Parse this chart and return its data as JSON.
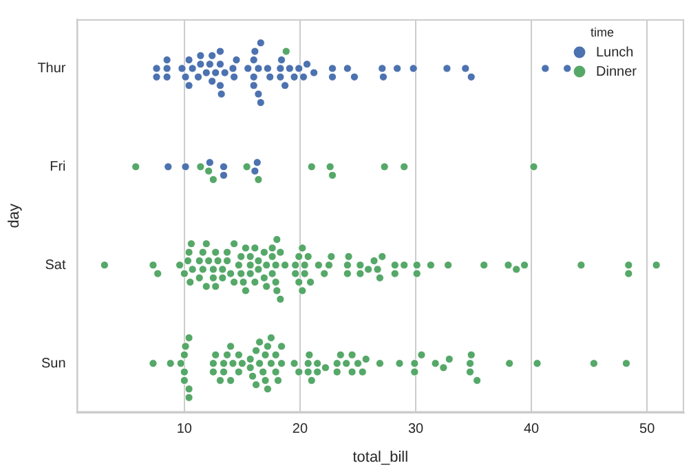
{
  "chart_data": {
    "type": "scatter",
    "orientation": "horizontal",
    "xlabel": "total_bill",
    "ylabel": "day",
    "legend_title": "time",
    "legend": "top right",
    "grid": "x",
    "marker": "circle",
    "categories": [
      "Thur",
      "Fri",
      "Sat",
      "Sun"
    ],
    "xlim": [
      0.7,
      53.2
    ],
    "xticks": [
      10,
      20,
      30,
      40,
      50
    ],
    "series": [
      {
        "name": "Lunch",
        "color": "#4c72b0",
        "x": [
          "Thur",
          "Thur",
          "Thur",
          "Thur",
          "Thur",
          "Thur",
          "Thur",
          "Thur",
          "Thur",
          "Thur",
          "Thur",
          "Thur",
          "Thur",
          "Thur",
          "Thur",
          "Thur",
          "Thur",
          "Thur",
          "Thur",
          "Thur",
          "Thur",
          "Thur",
          "Thur",
          "Thur",
          "Thur",
          "Thur",
          "Thur",
          "Thur",
          "Thur",
          "Thur",
          "Thur",
          "Thur",
          "Thur",
          "Thur",
          "Thur",
          "Thur",
          "Thur",
          "Thur",
          "Thur",
          "Thur",
          "Thur",
          "Thur",
          "Thur",
          "Thur",
          "Thur",
          "Thur",
          "Thur",
          "Thur",
          "Thur",
          "Thur",
          "Thur",
          "Thur",
          "Thur",
          "Thur",
          "Thur",
          "Thur",
          "Thur",
          "Thur",
          "Thur",
          "Thur",
          "Fri",
          "Fri",
          "Fri",
          "Fri",
          "Fri",
          "Fri",
          "Fri"
        ],
        "values": [
          7.6,
          7.6,
          8.5,
          8.5,
          8.5,
          9.8,
          10.1,
          10.4,
          10.4,
          10.7,
          11.2,
          11.4,
          11.4,
          11.9,
          12.2,
          12.4,
          12.4,
          12.7,
          13.1,
          13.1,
          13.1,
          13.2,
          13.5,
          14.2,
          14.3,
          14.5,
          15.5,
          16.0,
          16.0,
          16.0,
          16.1,
          16.4,
          16.4,
          16.6,
          16.6,
          17.2,
          17.4,
          18.3,
          18.3,
          18.4,
          18.7,
          19.1,
          19.5,
          19.9,
          20.3,
          20.6,
          21.2,
          22.8,
          22.8,
          24.1,
          24.7,
          27.1,
          27.2,
          28.4,
          29.8,
          32.7,
          34.3,
          34.8,
          41.2,
          43.1,
          8.6,
          10.1,
          12.2,
          13.4,
          13.4,
          16.1,
          16.3
        ]
      },
      {
        "name": "Dinner",
        "color": "#55a868",
        "x": [
          "Thur",
          "Fri",
          "Fri",
          "Fri",
          "Fri",
          "Fri",
          "Fri",
          "Fri",
          "Fri",
          "Fri",
          "Fri",
          "Fri",
          "Fri",
          "Sat",
          "Sat",
          "Sat",
          "Sat",
          "Sat",
          "Sat",
          "Sat",
          "Sat",
          "Sat",
          "Sat",
          "Sat",
          "Sat",
          "Sat",
          "Sat",
          "Sat",
          "Sat",
          "Sat",
          "Sat",
          "Sat",
          "Sat",
          "Sat",
          "Sat",
          "Sat",
          "Sat",
          "Sat",
          "Sat",
          "Sat",
          "Sat",
          "Sat",
          "Sat",
          "Sat",
          "Sat",
          "Sat",
          "Sat",
          "Sat",
          "Sat",
          "Sat",
          "Sat",
          "Sat",
          "Sat",
          "Sat",
          "Sat",
          "Sat",
          "Sat",
          "Sat",
          "Sat",
          "Sat",
          "Sat",
          "Sat",
          "Sat",
          "Sat",
          "Sat",
          "Sat",
          "Sat",
          "Sat",
          "Sat",
          "Sat",
          "Sat",
          "Sat",
          "Sat",
          "Sat",
          "Sat",
          "Sat",
          "Sat",
          "Sat",
          "Sat",
          "Sat",
          "Sat",
          "Sat",
          "Sat",
          "Sat",
          "Sat",
          "Sat",
          "Sat",
          "Sat",
          "Sat",
          "Sat",
          "Sat",
          "Sat",
          "Sat",
          "Sat",
          "Sat",
          "Sat",
          "Sat",
          "Sat",
          "Sat",
          "Sat",
          "Sat",
          "Sat",
          "Sat",
          "Sat",
          "Sat",
          "Sat",
          "Sat",
          "Sat",
          "Sun",
          "Sun",
          "Sun",
          "Sun",
          "Sun",
          "Sun",
          "Sun",
          "Sun",
          "Sun",
          "Sun",
          "Sun",
          "Sun",
          "Sun",
          "Sun",
          "Sun",
          "Sun",
          "Sun",
          "Sun",
          "Sun",
          "Sun",
          "Sun",
          "Sun",
          "Sun",
          "Sun",
          "Sun",
          "Sun",
          "Sun",
          "Sun",
          "Sun",
          "Sun",
          "Sun",
          "Sun",
          "Sun",
          "Sun",
          "Sun",
          "Sun",
          "Sun",
          "Sun",
          "Sun",
          "Sun",
          "Sun",
          "Sun",
          "Sun",
          "Sun",
          "Sun",
          "Sun",
          "Sun",
          "Sun",
          "Sun",
          "Sun",
          "Sun",
          "Sun",
          "Sun",
          "Sun",
          "Sun",
          "Sun",
          "Sun",
          "Sun",
          "Sun",
          "Sun",
          "Sun",
          "Sun",
          "Sun",
          "Sun",
          "Sun",
          "Sun",
          "Sun",
          "Sun",
          "Sun",
          "Sun",
          "Sun",
          "Sun",
          "Sun",
          "Sun",
          "Sun",
          "Sun"
        ],
        "values": [
          18.8,
          5.8,
          11.4,
          12.1,
          12.5,
          15.4,
          16.4,
          21.0,
          22.6,
          22.8,
          27.3,
          29.0,
          40.2,
          3.1,
          7.3,
          7.7,
          9.6,
          10.0,
          10.3,
          10.4,
          10.5,
          10.6,
          10.7,
          11.3,
          11.3,
          11.6,
          11.6,
          11.9,
          11.9,
          12.1,
          12.5,
          12.5,
          12.7,
          12.7,
          12.9,
          13.3,
          13.3,
          13.7,
          13.7,
          14.0,
          14.3,
          14.3,
          14.7,
          14.9,
          14.9,
          15.1,
          15.3,
          15.3,
          15.7,
          15.7,
          15.7,
          16.1,
          16.1,
          16.4,
          16.4,
          16.9,
          16.9,
          17.1,
          17.1,
          17.6,
          17.6,
          17.6,
          17.9,
          17.9,
          18.0,
          18.0,
          18.3,
          18.3,
          18.7,
          19.6,
          19.6,
          19.9,
          19.9,
          20.2,
          20.2,
          20.4,
          20.4,
          20.7,
          20.9,
          21.6,
          22.1,
          22.5,
          22.7,
          24.1,
          24.1,
          24.2,
          25.2,
          25.2,
          25.9,
          26.4,
          26.7,
          26.9,
          27.1,
          28.2,
          28.2,
          29.0,
          30.1,
          30.1,
          31.3,
          32.8,
          35.9,
          38.0,
          38.7,
          39.4,
          44.3,
          48.4,
          48.4,
          50.8,
          7.3,
          8.8,
          9.7,
          10.0,
          10.0,
          10.0,
          10.1,
          10.4,
          10.4,
          10.4,
          12.5,
          12.5,
          12.7,
          13.1,
          13.4,
          13.4,
          13.7,
          14.0,
          14.0,
          14.2,
          14.7,
          14.7,
          15.0,
          15.7,
          15.7,
          15.9,
          16.2,
          16.2,
          16.5,
          16.5,
          16.8,
          17.0,
          17.0,
          17.2,
          17.2,
          17.5,
          17.5,
          17.9,
          17.9,
          18.1,
          18.4,
          18.4,
          19.5,
          19.9,
          20.7,
          20.7,
          20.8,
          21.0,
          21.5,
          21.5,
          22.2,
          23.2,
          23.2,
          23.5,
          24.0,
          24.5,
          24.5,
          25.0,
          25.4,
          25.7,
          26.9,
          28.6,
          29.9,
          29.9,
          30.5,
          31.7,
          32.4,
          32.9,
          34.7,
          34.7,
          34.8,
          35.3,
          38.1,
          40.5,
          45.4,
          48.2
        ]
      }
    ]
  }
}
